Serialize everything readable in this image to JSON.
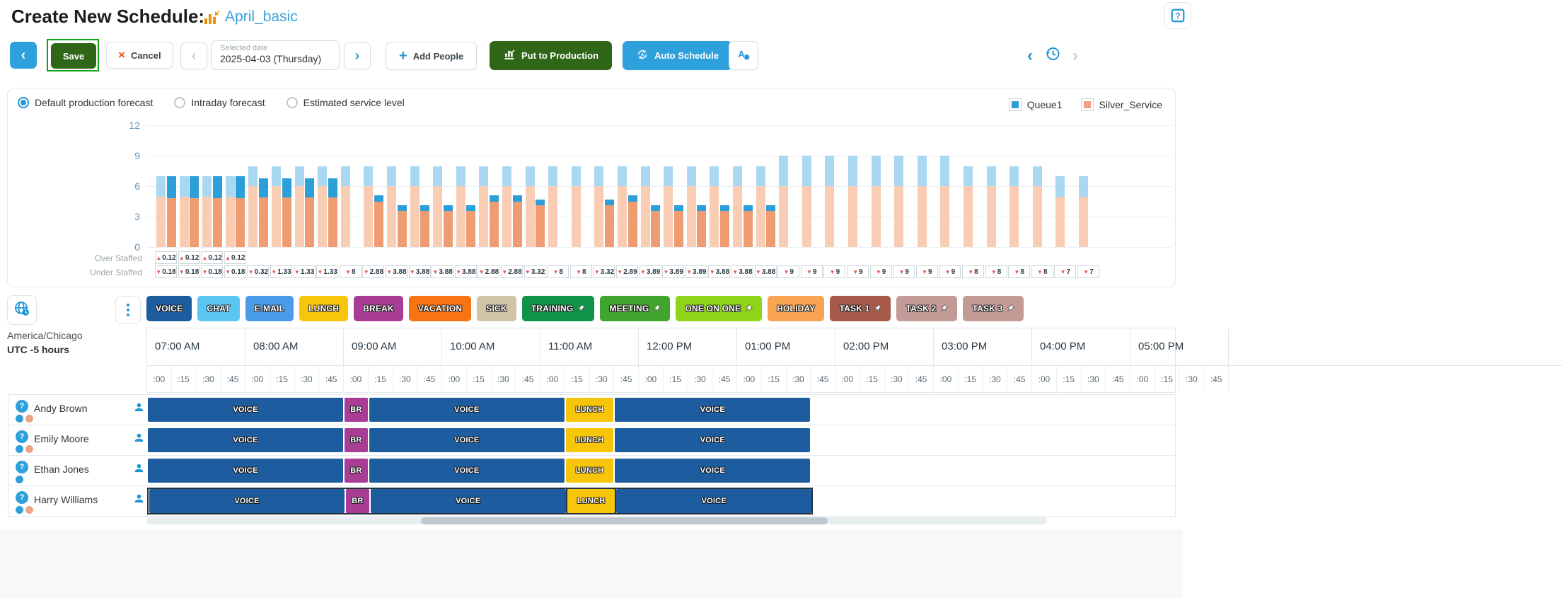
{
  "header": {
    "title": "Create New Schedule:",
    "schedule_name": "April_basic"
  },
  "toolbar": {
    "back_label": "‹",
    "save_label": "Save",
    "cancel_label": "Cancel",
    "cancel_x": "×",
    "prev_label": "‹",
    "next_label": "›",
    "date_label": "Selected date",
    "date_value": "2025-04-03 (Thursday)",
    "add_people_label": "Add People",
    "add_plus": "+",
    "put_to_production_label": "Put to Production",
    "auto_schedule_label": "Auto Schedule",
    "undo_label": "‹",
    "redo_label": "›"
  },
  "forecast_panel": {
    "options": [
      "Default production forecast",
      "Intraday forecast",
      "Estimated service level"
    ],
    "selected_option": 0,
    "legend": [
      {
        "label": "Queue1",
        "color": "#2d9fd8"
      },
      {
        "label": "Silver_Service",
        "color": "#efa183"
      }
    ],
    "over_staffed_label": "Over Staffed",
    "under_staffed_label": "Under Staffed"
  },
  "chart_data": {
    "type": "bar",
    "subtype": "grouped-stacked",
    "x_start": "07:00 AM",
    "interval_minutes": 15,
    "ylim": [
      0,
      12
    ],
    "yticks": [
      0,
      3,
      6,
      9,
      12
    ],
    "grid": true,
    "legend_position": "top-right",
    "series_colors": {
      "forecast_silver": "#f8cdb4",
      "forecast_queue1": "#a9d9f2",
      "scheduled_silver": "#ef9c72",
      "scheduled_queue1": "#2d9fd8"
    },
    "slot_stack_order": [
      "forecast_silver",
      "forecast_queue1",
      "scheduled_silver",
      "scheduled_queue1"
    ],
    "slots": [
      [
        5,
        2,
        4.8,
        2.2
      ],
      [
        5,
        2,
        4.8,
        2.2
      ],
      [
        5,
        2,
        4.8,
        2.2
      ],
      [
        5,
        2,
        4.8,
        2.2
      ],
      [
        6,
        2,
        4.9,
        1.9
      ],
      [
        6,
        2,
        4.9,
        1.9
      ],
      [
        6,
        2,
        4.9,
        1.9
      ],
      [
        6,
        2,
        4.9,
        1.9
      ],
      [
        6,
        2,
        0,
        0
      ],
      [
        6,
        2,
        4.5,
        0.62
      ],
      [
        6,
        2,
        3.6,
        0.52
      ],
      [
        6,
        2,
        3.6,
        0.52
      ],
      [
        6,
        2,
        3.6,
        0.52
      ],
      [
        6,
        2,
        3.6,
        0.52
      ],
      [
        6,
        2,
        4.5,
        0.62
      ],
      [
        6,
        2,
        4.5,
        0.62
      ],
      [
        6,
        2,
        4.1,
        0.58
      ],
      [
        6,
        2,
        0,
        0
      ],
      [
        6,
        2,
        0,
        0
      ],
      [
        6,
        2,
        4.1,
        0.58
      ],
      [
        6,
        2,
        4.5,
        0.61
      ],
      [
        6,
        2,
        3.6,
        0.51
      ],
      [
        6,
        2,
        3.6,
        0.51
      ],
      [
        6,
        2,
        3.6,
        0.51
      ],
      [
        6,
        2,
        3.6,
        0.52
      ],
      [
        6,
        2,
        3.6,
        0.52
      ],
      [
        6,
        2,
        3.6,
        0.52
      ],
      [
        6,
        3,
        0,
        0
      ],
      [
        6,
        3,
        0,
        0
      ],
      [
        6,
        3,
        0,
        0
      ],
      [
        6,
        3,
        0,
        0
      ],
      [
        6,
        3,
        0,
        0
      ],
      [
        6,
        3,
        0,
        0
      ],
      [
        6,
        3,
        0,
        0
      ],
      [
        6,
        3,
        0,
        0
      ],
      [
        6,
        2,
        0,
        0
      ],
      [
        6,
        2,
        0,
        0
      ],
      [
        6,
        2,
        0,
        0
      ],
      [
        6,
        2,
        0,
        0
      ],
      [
        5,
        2,
        0,
        0
      ],
      [
        5,
        2,
        0,
        0
      ]
    ],
    "over_staffed": [
      "0.12",
      "0.12",
      "0.12",
      "0.12"
    ],
    "under_staffed": [
      "0.18",
      "0.18",
      "0.18",
      "0.18",
      "0.32",
      "1.33",
      "1.33",
      "1.33",
      "8",
      "2.88",
      "3.88",
      "3.88",
      "3.88",
      "3.88",
      "2.88",
      "2.88",
      "3.32",
      "8",
      "8",
      "3.32",
      "2.89",
      "3.89",
      "3.89",
      "3.89",
      "3.88",
      "3.88",
      "3.88",
      "9",
      "9",
      "9",
      "9",
      "9",
      "9",
      "9",
      "9",
      "8",
      "8",
      "8",
      "8",
      "7",
      "7"
    ]
  },
  "activities": [
    {
      "label": "VOICE",
      "color": "#1d5d9f",
      "pinned": false
    },
    {
      "label": "CHAT",
      "color": "#5cc6f2",
      "pinned": false
    },
    {
      "label": "E-MAIL",
      "color": "#4a9ce8",
      "pinned": false
    },
    {
      "label": "LUNCH",
      "color": "#f7c50a",
      "pinned": false
    },
    {
      "label": "BREAK",
      "color": "#a93d96",
      "pinned": false
    },
    {
      "label": "VACATION",
      "color": "#f87412",
      "pinned": false
    },
    {
      "label": "SICK",
      "color": "#cfc4a6",
      "pinned": false
    },
    {
      "label": "TRAINING",
      "color": "#0d9448",
      "pinned": true
    },
    {
      "label": "MEETING",
      "color": "#3fa52c",
      "pinned": true
    },
    {
      "label": "ONE ON ONE",
      "color": "#8fd418",
      "pinned": true
    },
    {
      "label": "HOLIDAY",
      "color": "#f9a452",
      "pinned": false
    },
    {
      "label": "TASK 1",
      "color": "#a85a4a",
      "pinned": true
    },
    {
      "label": "TASK 2",
      "color": "#c49a96",
      "pinned": true
    },
    {
      "label": "TASK 3",
      "color": "#c49a96",
      "pinned": true
    }
  ],
  "timezone": {
    "region": "America/Chicago",
    "offset": "UTC -5 hours"
  },
  "timeline": {
    "hours": [
      "07:00 AM",
      "08:00 AM",
      "09:00 AM",
      "10:00 AM",
      "11:00 AM",
      "12:00 PM",
      "01:00 PM",
      "02:00 PM",
      "03:00 PM",
      "04:00 PM"
    ],
    "partial_hour": "05:00 PM",
    "subdivisions": [
      ":00",
      ":15",
      ":30",
      ":45"
    ]
  },
  "agents": [
    {
      "name": "Andy Brown",
      "dots": [
        "#2d9fd8",
        "#efa183"
      ],
      "selected": false
    },
    {
      "name": "Emily Moore",
      "dots": [
        "#2d9fd8",
        "#efa183"
      ],
      "selected": false
    },
    {
      "name": "Ethan Jones",
      "dots": [
        "#2d9fd8"
      ],
      "selected": false
    },
    {
      "name": "Harry Williams",
      "dots": [
        "#2d9fd8",
        "#efa183"
      ],
      "selected": true
    }
  ],
  "shift_template": [
    {
      "label": "VOICE",
      "color": "#1d5d9f",
      "start": 0,
      "slots": 8
    },
    {
      "label": "BR",
      "color": "#a93d96",
      "start": 8,
      "slots": 1
    },
    {
      "label": "VOICE",
      "color": "#1d5d9f",
      "start": 9,
      "slots": 8
    },
    {
      "label": "LUNCH",
      "color": "#f7c50a",
      "start": 17,
      "slots": 2
    },
    {
      "label": "VOICE",
      "color": "#1d5d9f",
      "start": 19,
      "slots": 8
    }
  ]
}
